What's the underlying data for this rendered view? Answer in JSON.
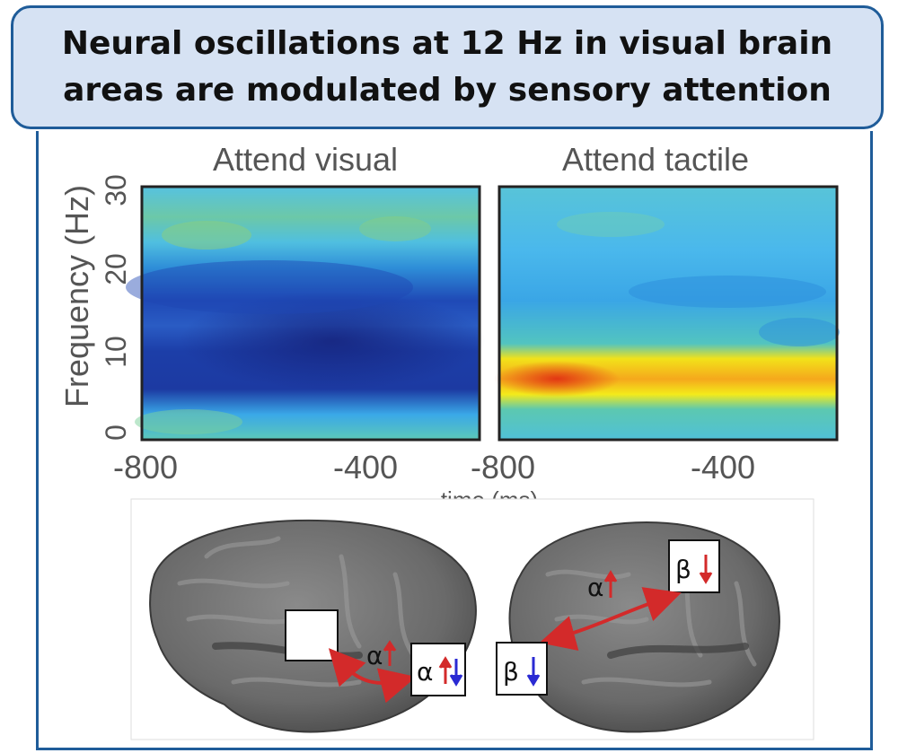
{
  "title": {
    "line1": "Neural oscillations at 12 Hz in visual brain",
    "line2": "areas are modulated by sensory attention"
  },
  "panels": {
    "left_title": "Attend visual",
    "right_title": "Attend tactile",
    "y_axis_label": "Frequency (Hz)",
    "x_axis_label": "time (ms)",
    "y_ticks": [
      "0",
      "10",
      "20",
      "30"
    ],
    "left_x_ticks": [
      "-800",
      "-400"
    ],
    "right_x_ticks": [
      "-800",
      "-400"
    ]
  },
  "brain_labels": {
    "left_alpha": "α",
    "left_box": "α",
    "right_alpha": "α",
    "right_beta_top": "β",
    "right_beta_bottom": "β"
  },
  "colors": {
    "title_bg": "#d6e2f3",
    "border": "#1f5c99",
    "arrow_red": "#d32a2a",
    "arrow_blue": "#2a2ad3"
  }
}
